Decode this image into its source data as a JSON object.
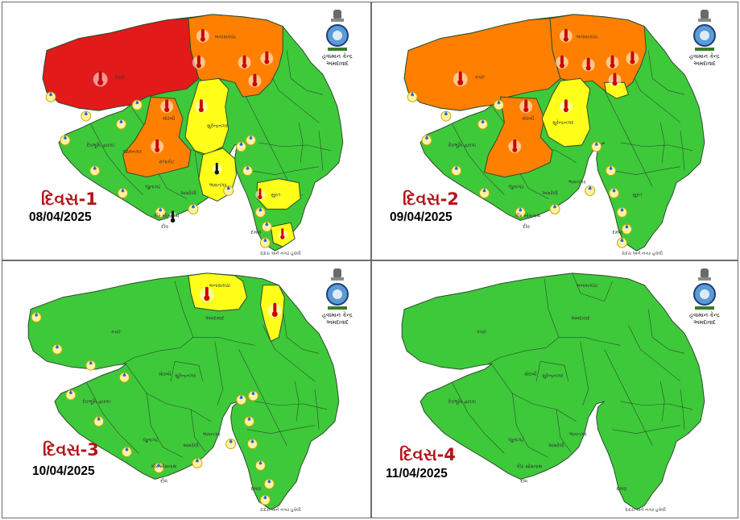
{
  "org": {
    "line1": "હવામાન કેન્દ્ર",
    "line2": "અમદાવાદ"
  },
  "colors": {
    "green": "#3ec93b",
    "yellow": "#ffff1a",
    "orange": "#ff8000",
    "red": "#e21a1a",
    "border": "#2d4a2a"
  },
  "footer": "દાદરા અને નગર હવેલી",
  "regions": {
    "kutch": "કચ્છ",
    "banaskantha": "બનાસકાંઠા",
    "ahmedabad": "અમદાવાદ",
    "surendranagar": "સુરેન્દ્રનગર",
    "morbi": "મોરબી",
    "rajkot": "રાજકોટ",
    "jamnagar": "જામનગર",
    "devbhumi": "દેવભૂમિ દ્વારકા",
    "porbandar": "પોરબંદર",
    "junagadh": "જુનાગઢ",
    "amreli": "અમરેલી",
    "bhavnagar": "ભાવનગર",
    "girsomnath": "ગીર સોમનાથ",
    "bharuch": "ભરૂચ",
    "surat": "સુરત",
    "valsad": "વલસાડ",
    "daman": "દમણ",
    "diu": "દીવ",
    "vadodara": "વડોદરા",
    "dahod": "દાહોદ"
  },
  "panels": [
    {
      "day": "દિવસ-1",
      "date": "08/04/2025"
    },
    {
      "day": "દિવસ-2",
      "date": "09/04/2025"
    },
    {
      "day": "દિવસ-3",
      "date": "10/04/2025"
    },
    {
      "day": "દિવસ-4",
      "date": "11/04/2025"
    }
  ]
}
